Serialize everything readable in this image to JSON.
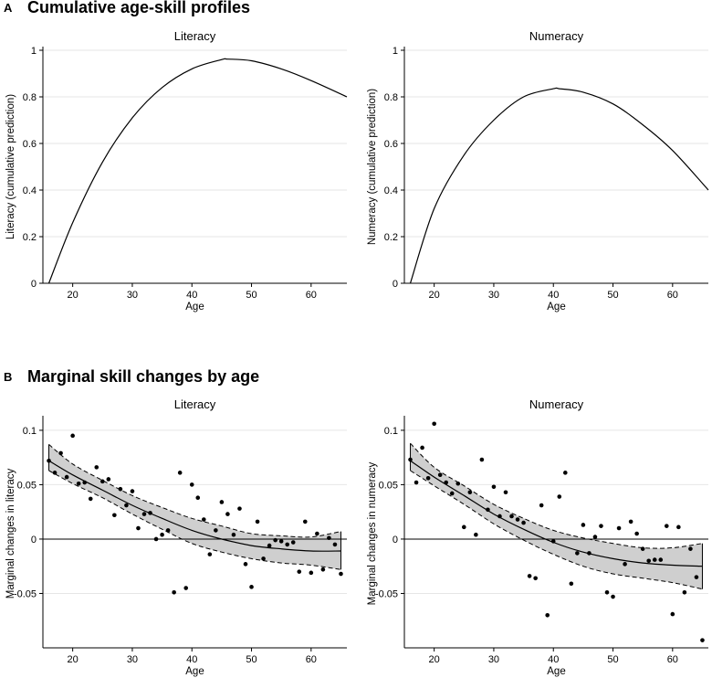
{
  "figure": {
    "section_a": {
      "letter": "A",
      "title": "Cumulative age-skill profiles"
    },
    "section_b": {
      "letter": "B",
      "title": "Marginal skill changes by age"
    }
  },
  "chart_data": [
    {
      "id": "a-literacy",
      "type": "line",
      "title": "Literacy",
      "xlabel": "Age",
      "ylabel": "Literacy (cumulative prediction)",
      "xlim": [
        15,
        66
      ],
      "ylim": [
        0,
        1
      ],
      "xticks": [
        20,
        30,
        40,
        50,
        60
      ],
      "yticks": [
        0,
        0.2,
        0.4,
        0.6,
        0.8,
        1
      ],
      "ytick_labels": [
        "0",
        "0.2",
        "0.4",
        "0.6",
        "0.8",
        "1"
      ],
      "grid": true,
      "series": [
        {
          "name": "Literacy",
          "x": [
            16,
            20,
            25,
            30,
            35,
            40,
            45,
            46,
            50,
            55,
            60,
            66
          ],
          "y": [
            0.0,
            0.26,
            0.52,
            0.71,
            0.84,
            0.92,
            0.96,
            0.962,
            0.955,
            0.92,
            0.87,
            0.8
          ]
        }
      ]
    },
    {
      "id": "a-numeracy",
      "type": "line",
      "title": "Numeracy",
      "xlabel": "Age",
      "ylabel": "Numeracy (cumulative prediction)",
      "xlim": [
        15,
        66
      ],
      "ylim": [
        0,
        1
      ],
      "xticks": [
        20,
        30,
        40,
        50,
        60
      ],
      "yticks": [
        0,
        0.2,
        0.4,
        0.6,
        0.8,
        1
      ],
      "ytick_labels": [
        "0",
        "0.2",
        "0.4",
        "0.6",
        "0.8",
        "1"
      ],
      "grid": true,
      "series": [
        {
          "name": "Numeracy",
          "x": [
            16,
            20,
            25,
            30,
            35,
            40,
            41,
            45,
            50,
            55,
            60,
            66
          ],
          "y": [
            0.0,
            0.32,
            0.55,
            0.7,
            0.8,
            0.835,
            0.835,
            0.82,
            0.77,
            0.68,
            0.57,
            0.4
          ]
        }
      ]
    },
    {
      "id": "b-literacy",
      "type": "scatter",
      "title": "Literacy",
      "xlabel": "Age",
      "ylabel": "Marginal changes in literacy",
      "xlim": [
        15,
        66
      ],
      "ylim": [
        -0.1,
        0.11
      ],
      "xticks": [
        20,
        30,
        40,
        50,
        60
      ],
      "yticks": [
        -0.05,
        0,
        0.05,
        0.1
      ],
      "ytick_labels": [
        "-0.05",
        "0",
        "0.05",
        "0.1"
      ],
      "grid": true,
      "fit": {
        "x": [
          16,
          20,
          25,
          30,
          35,
          40,
          45,
          50,
          55,
          60,
          65
        ],
        "y": [
          0.072,
          0.059,
          0.045,
          0.031,
          0.019,
          0.008,
          0.0,
          -0.006,
          -0.009,
          -0.011,
          -0.011
        ],
        "lower": [
          0.063,
          0.051,
          0.038,
          0.023,
          0.009,
          -0.004,
          -0.012,
          -0.018,
          -0.022,
          -0.024,
          -0.028
        ],
        "upper": [
          0.087,
          0.069,
          0.054,
          0.04,
          0.029,
          0.019,
          0.012,
          0.005,
          0.003,
          0.002,
          0.007
        ]
      },
      "points": [
        [
          16,
          0.072
        ],
        [
          17,
          0.061
        ],
        [
          18,
          0.079
        ],
        [
          19,
          0.057
        ],
        [
          20,
          0.095
        ],
        [
          21,
          0.051
        ],
        [
          22,
          0.052
        ],
        [
          23,
          0.037
        ],
        [
          24,
          0.066
        ],
        [
          25,
          0.053
        ],
        [
          26,
          0.055
        ],
        [
          27,
          0.022
        ],
        [
          28,
          0.046
        ],
        [
          29,
          0.031
        ],
        [
          30,
          0.044
        ],
        [
          31,
          0.01
        ],
        [
          32,
          0.023
        ],
        [
          33,
          0.024
        ],
        [
          34,
          0.0
        ],
        [
          35,
          0.004
        ],
        [
          36,
          0.008
        ],
        [
          37,
          -0.049
        ],
        [
          38,
          0.061
        ],
        [
          39,
          -0.045
        ],
        [
          40,
          0.05
        ],
        [
          41,
          0.038
        ],
        [
          42,
          0.018
        ],
        [
          43,
          -0.014
        ],
        [
          44,
          0.008
        ],
        [
          45,
          0.034
        ],
        [
          46,
          0.023
        ],
        [
          47,
          0.004
        ],
        [
          48,
          0.028
        ],
        [
          49,
          -0.023
        ],
        [
          50,
          -0.044
        ],
        [
          51,
          0.016
        ],
        [
          52,
          -0.018
        ],
        [
          53,
          -0.006
        ],
        [
          54,
          -0.001
        ],
        [
          55,
          -0.002
        ],
        [
          56,
          -0.005
        ],
        [
          57,
          -0.003
        ],
        [
          58,
          -0.03
        ],
        [
          59,
          0.016
        ],
        [
          60,
          -0.031
        ],
        [
          61,
          0.005
        ],
        [
          62,
          -0.028
        ],
        [
          63,
          0.001
        ],
        [
          64,
          -0.005
        ],
        [
          65,
          -0.032
        ]
      ]
    },
    {
      "id": "b-numeracy",
      "type": "scatter",
      "title": "Numeracy",
      "xlabel": "Age",
      "ylabel": "Marginal changes in numeracy",
      "xlim": [
        15,
        66
      ],
      "ylim": [
        -0.1,
        0.11
      ],
      "xticks": [
        20,
        30,
        40,
        50,
        60
      ],
      "yticks": [
        -0.05,
        0,
        0.05,
        0.1
      ],
      "ytick_labels": [
        "-0.05",
        "0",
        "0.05",
        "0.1"
      ],
      "grid": true,
      "fit": {
        "x": [
          16,
          20,
          25,
          30,
          35,
          40,
          45,
          50,
          55,
          60,
          65
        ],
        "y": [
          0.072,
          0.057,
          0.04,
          0.023,
          0.009,
          -0.003,
          -0.012,
          -0.018,
          -0.022,
          -0.024,
          -0.025
        ],
        "lower": [
          0.063,
          0.049,
          0.032,
          0.014,
          -0.001,
          -0.014,
          -0.025,
          -0.032,
          -0.036,
          -0.04,
          -0.046
        ],
        "upper": [
          0.088,
          0.066,
          0.049,
          0.032,
          0.019,
          0.008,
          0.001,
          -0.004,
          -0.008,
          -0.008,
          -0.004
        ]
      },
      "points": [
        [
          16,
          0.073
        ],
        [
          17,
          0.052
        ],
        [
          18,
          0.084
        ],
        [
          19,
          0.056
        ],
        [
          20,
          0.106
        ],
        [
          21,
          0.059
        ],
        [
          22,
          0.052
        ],
        [
          23,
          0.042
        ],
        [
          24,
          0.051
        ],
        [
          25,
          0.011
        ],
        [
          26,
          0.043
        ],
        [
          27,
          0.004
        ],
        [
          28,
          0.073
        ],
        [
          29,
          0.027
        ],
        [
          30,
          0.048
        ],
        [
          31,
          0.021
        ],
        [
          32,
          0.043
        ],
        [
          33,
          0.021
        ],
        [
          34,
          0.018
        ],
        [
          35,
          0.015
        ],
        [
          36,
          -0.034
        ],
        [
          37,
          -0.036
        ],
        [
          38,
          0.031
        ],
        [
          39,
          -0.07
        ],
        [
          40,
          -0.002
        ],
        [
          41,
          0.039
        ],
        [
          42,
          0.061
        ],
        [
          43,
          -0.041
        ],
        [
          44,
          -0.013
        ],
        [
          45,
          0.013
        ],
        [
          46,
          -0.013
        ],
        [
          47,
          0.002
        ],
        [
          48,
          0.012
        ],
        [
          49,
          -0.049
        ],
        [
          50,
          -0.053
        ],
        [
          51,
          0.01
        ],
        [
          52,
          -0.023
        ],
        [
          53,
          0.016
        ],
        [
          54,
          0.005
        ],
        [
          55,
          -0.009
        ],
        [
          56,
          -0.02
        ],
        [
          57,
          -0.019
        ],
        [
          58,
          -0.019
        ],
        [
          59,
          0.012
        ],
        [
          60,
          -0.069
        ],
        [
          61,
          0.011
        ],
        [
          62,
          -0.049
        ],
        [
          63,
          -0.009
        ],
        [
          64,
          -0.035
        ],
        [
          65,
          -0.093
        ]
      ]
    }
  ]
}
